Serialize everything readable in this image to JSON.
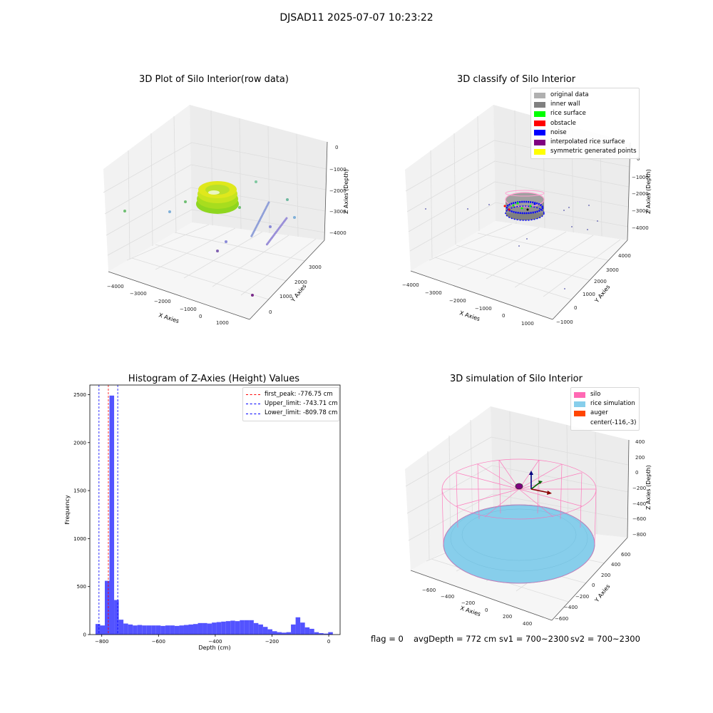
{
  "figure": {
    "suptitle": "DJSAD11 2025-07-07 10:23:22"
  },
  "colors": {
    "original": "#b0b0b0",
    "inner_wall": "#808080",
    "rice_surface": "#00ff00",
    "obstacle": "#ff0000",
    "noise": "#0000ff",
    "interpolated": "#800080",
    "symmetric": "#ffff00",
    "hist_bar": "#4444ff",
    "silo": "#ff69b4",
    "rice_sim": "#87ceeb",
    "auger": "#ff4500"
  },
  "plot1": {
    "title": "3D Plot of Silo Interior(row data)",
    "xlabel": "X Axies",
    "ylabel": "Y Axies",
    "zlabel": "Z Axies (Depth)",
    "xticks": [
      "−4000",
      "−3000",
      "−2000",
      "−1000",
      "0",
      "1000"
    ],
    "yticks": [
      "0",
      "1000",
      "2000",
      "3000"
    ],
    "zticks": [
      "0",
      "−1000",
      "−2000",
      "−3000",
      "−4000"
    ]
  },
  "plot2": {
    "title": "3D classify of Silo Interior",
    "xlabel": "X Axies",
    "ylabel": "Y Axies",
    "zlabel": "Z Axies (Depth)",
    "xticks": [
      "−4000",
      "−3000",
      "−2000",
      "−1000",
      "0",
      "1000"
    ],
    "yticks": [
      "−1000",
      "0",
      "1000",
      "2000",
      "3000",
      "4000"
    ],
    "zticks": [
      "0",
      "−1000",
      "−2000",
      "−3000",
      "−4000"
    ],
    "legend": [
      {
        "label": "original data",
        "color": "#b0b0b0"
      },
      {
        "label": "inner wall",
        "color": "#808080"
      },
      {
        "label": "rice surface",
        "color": "#00ff00"
      },
      {
        "label": "obstacle",
        "color": "#ff0000"
      },
      {
        "label": "noise",
        "color": "#0000ff"
      },
      {
        "label": "interpolated rice surface",
        "color": "#800080"
      },
      {
        "label": "symmetric generated points",
        "color": "#ffff00"
      }
    ]
  },
  "plot4": {
    "title": "3D simulation of Silo Interior",
    "xlabel": "X Axies",
    "ylabel": "Y Axies",
    "zlabel": "Z Axies (Depth)",
    "xticks": [
      "−600",
      "−400",
      "−200",
      "0",
      "200",
      "400"
    ],
    "yticks": [
      "−600",
      "−400",
      "−200",
      "0",
      "200",
      "400",
      "600"
    ],
    "zticks": [
      "400",
      "200",
      "0",
      "−200",
      "−400",
      "−600",
      "−800"
    ],
    "legend": [
      {
        "label": "silo",
        "color": "#ff69b4"
      },
      {
        "label": "rice simulation",
        "color": "#87ceeb"
      },
      {
        "label": "auger",
        "color": "#ff4500"
      },
      {
        "label": "center(-116,-3)",
        "color": ""
      }
    ]
  },
  "footer": {
    "flag": "flag = 0",
    "avg": "avgDepth = 772 cm",
    "sv1": "sv1 = 700~2300",
    "sv2": "sv2 = 700~2300"
  },
  "chart_data": [
    {
      "type": "histogram",
      "title": "Histogram of Z-Axies (Height) Values",
      "xlabel": "Depth (cm)",
      "ylabel": "Frequency",
      "xlim": [
        -842,
        40
      ],
      "ylim": [
        0,
        2600
      ],
      "xticks": [
        -800,
        -600,
        -400,
        -200,
        0
      ],
      "xtick_labels": [
        "−800",
        "−600",
        "−400",
        "−200",
        "0"
      ],
      "yticks": [
        0,
        500,
        1000,
        1500,
        2000,
        2500
      ],
      "bin_start": -822,
      "bin_width": 16.4,
      "values": [
        110,
        95,
        560,
        2490,
        360,
        155,
        115,
        105,
        95,
        100,
        95,
        95,
        95,
        95,
        90,
        95,
        95,
        90,
        95,
        100,
        105,
        110,
        120,
        120,
        115,
        125,
        130,
        135,
        140,
        145,
        140,
        150,
        150,
        150,
        120,
        105,
        80,
        55,
        35,
        25,
        20,
        25,
        105,
        180,
        125,
        75,
        60,
        25,
        15,
        10,
        25
      ],
      "lines": [
        {
          "label": "first_peak: -776.75 cm",
          "x": -776.75,
          "color": "#ff0000"
        },
        {
          "label": "Upper_limit: -743.71 cm",
          "x": -743.71,
          "color": "#0000ff"
        },
        {
          "label": "Lower_limit: -809.78 cm",
          "x": -809.78,
          "color": "#0000ff"
        }
      ]
    }
  ]
}
